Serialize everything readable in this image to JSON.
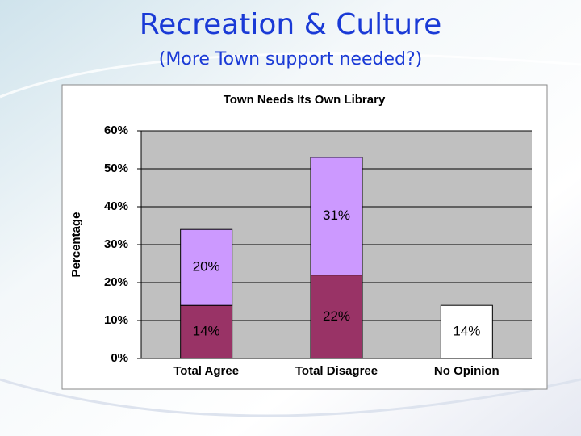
{
  "header": {
    "title": "Recreation & Culture",
    "subtitle": "(More Town support needed?)"
  },
  "chart_data": {
    "type": "stacked-bar",
    "title": "Town Needs Its Own Library",
    "y_label": "Percentage",
    "categories": [
      "Total Agree",
      "Total Disagree",
      "No Opinion"
    ],
    "series": [
      {
        "color": "#993366",
        "values": [
          14,
          22,
          null
        ],
        "value_labels": [
          "14%",
          "22%",
          null
        ]
      },
      {
        "color": "#cc99ff",
        "values": [
          20,
          31,
          null
        ],
        "value_labels": [
          "20%",
          "31%",
          null
        ]
      },
      {
        "color": "#ffffff",
        "values": [
          null,
          null,
          14
        ],
        "value_labels": [
          null,
          null,
          "14%"
        ]
      }
    ],
    "ylim": [
      0,
      60
    ],
    "yticks": [
      {
        "value": 0,
        "label": "0%"
      },
      {
        "value": 10,
        "label": "10%"
      },
      {
        "value": 20,
        "label": "20%"
      },
      {
        "value": 30,
        "label": "30%"
      },
      {
        "value": 40,
        "label": "40%"
      },
      {
        "value": 50,
        "label": "50%"
      },
      {
        "value": 60,
        "label": "60%"
      }
    ],
    "grid": true,
    "plot_background": "#c0c0c0"
  }
}
